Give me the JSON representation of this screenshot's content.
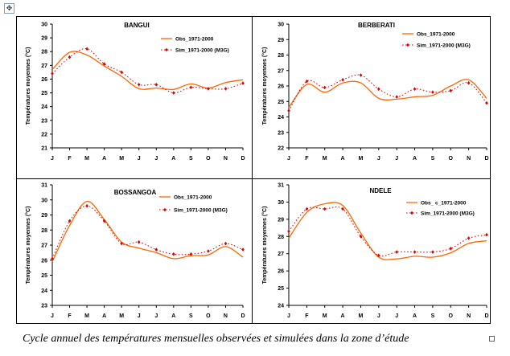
{
  "caption": "Cycle annuel des températures mensuelles observées et simulées dans la zone d’étude",
  "colors": {
    "obs": "#ff6600",
    "sim": "#dd0000",
    "axis": "#000000"
  },
  "chart_data": [
    {
      "type": "line",
      "title": "BANGUI",
      "ylabel": "Températures moyennes (°C)",
      "categories": [
        "J",
        "F",
        "M",
        "A",
        "M",
        "J",
        "J",
        "A",
        "S",
        "O",
        "N",
        "D"
      ],
      "ylim": [
        21,
        30
      ],
      "yticks": [
        21,
        22,
        23,
        24,
        25,
        26,
        27,
        28,
        29,
        30
      ],
      "legend_position": "top-right",
      "series": [
        {
          "name": "Obs_1971-2000",
          "style": "solid",
          "values": [
            26.7,
            27.95,
            27.75,
            26.95,
            26.2,
            25.3,
            25.35,
            25.25,
            25.65,
            25.35,
            25.75,
            25.95
          ]
        },
        {
          "name": "Sim_1971-2000 (M3G)",
          "style": "dotted-markers",
          "values": [
            26.4,
            27.6,
            28.2,
            27.1,
            26.5,
            25.6,
            25.6,
            25.0,
            25.4,
            25.3,
            25.3,
            25.7
          ]
        }
      ]
    },
    {
      "type": "line",
      "title": "BERBERATI",
      "ylabel": "Températures moyennes (°C)",
      "categories": [
        "J",
        "F",
        "M",
        "A",
        "M",
        "J",
        "J",
        "A",
        "S",
        "O",
        "N",
        "D"
      ],
      "ylim": [
        22,
        30
      ],
      "yticks": [
        22,
        23,
        24,
        25,
        26,
        27,
        28,
        29,
        30
      ],
      "legend_position": "top-right",
      "series": [
        {
          "name": "Obs_1971-2000",
          "style": "solid",
          "values": [
            24.6,
            26.1,
            25.6,
            26.2,
            26.2,
            25.2,
            25.15,
            25.3,
            25.4,
            26.0,
            26.4,
            25.2
          ]
        },
        {
          "name": "Sim_1971-2000 (M3G)",
          "style": "dotted-markers",
          "values": [
            24.4,
            26.3,
            25.9,
            26.4,
            26.7,
            25.8,
            25.3,
            25.8,
            25.6,
            25.7,
            26.2,
            24.9
          ]
        }
      ]
    },
    {
      "type": "line",
      "title": "BOSSANGOA",
      "ylabel": "Températures moyennes (°C)",
      "categories": [
        "J",
        "F",
        "M",
        "A",
        "M",
        "J",
        "J",
        "A",
        "S",
        "O",
        "N",
        "D"
      ],
      "ylim": [
        23,
        31
      ],
      "yticks": [
        23,
        24,
        25,
        26,
        27,
        28,
        29,
        30,
        31
      ],
      "legend_position": "top-right",
      "series": [
        {
          "name": "Obs_1971-2000",
          "style": "solid",
          "values": [
            25.9,
            28.3,
            29.9,
            28.7,
            27.2,
            26.8,
            26.5,
            26.1,
            26.3,
            26.35,
            26.9,
            26.2
          ]
        },
        {
          "name": "Sim_1971-2000 (M3G)",
          "style": "dotted-markers",
          "values": [
            26.1,
            28.6,
            29.6,
            28.6,
            27.1,
            27.2,
            26.7,
            26.4,
            26.4,
            26.6,
            27.1,
            26.7
          ]
        }
      ]
    },
    {
      "type": "line",
      "title": "NDELE",
      "ylabel": "Températures moyennes (°C)",
      "categories": [
        "J",
        "F",
        "M",
        "A",
        "M",
        "J",
        "J",
        "A",
        "S",
        "O",
        "N",
        "D"
      ],
      "ylim": [
        24,
        31
      ],
      "yticks": [
        24,
        25,
        26,
        27,
        28,
        29,
        30,
        31
      ],
      "legend_position": "top-right",
      "series": [
        {
          "name": "Obs_ c_1971-2000",
          "style": "solid",
          "values": [
            27.9,
            29.4,
            29.9,
            29.8,
            28.2,
            26.8,
            26.7,
            26.85,
            26.8,
            27.05,
            27.6,
            27.75
          ]
        },
        {
          "name": "Sim_1971-2000 (M3G)",
          "style": "dotted-markers",
          "values": [
            28.3,
            29.6,
            29.6,
            29.6,
            28.0,
            26.9,
            27.1,
            27.1,
            27.1,
            27.3,
            27.9,
            28.1
          ]
        }
      ]
    }
  ]
}
